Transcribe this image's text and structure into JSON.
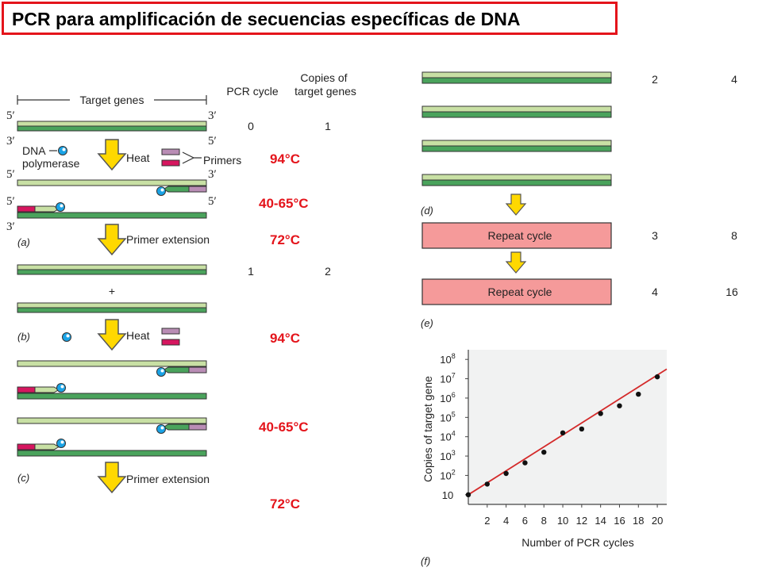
{
  "title": "PCR para amplificación de secuencias específicas de DNA",
  "colors": {
    "title_border": "#e4141b",
    "temp_text": "#e4141b",
    "strand_dark": "#4aa35c",
    "strand_light": "#c8e0a4",
    "primer_pink": "#d6165f",
    "primer_purple": "#b98db5",
    "arrow_yellow": "#ffd800",
    "repeat_box": "#f59a9a",
    "polymerase": "#1aa3e6"
  },
  "header": {
    "target_genes": "Target genes",
    "pcr_cycle": "PCR cycle",
    "copies_line1": "Copies of",
    "copies_line2": "target genes"
  },
  "ends": {
    "five": "5′",
    "three": "3′"
  },
  "labels": {
    "dna": "DNA",
    "polymerase": "polymerase",
    "heat": "Heat",
    "primers": "Primers",
    "primer_extension": "Primer extension",
    "plus": "+",
    "repeat_cycle": "Repeat cycle"
  },
  "panels": {
    "a": "(a)",
    "b": "(b)",
    "c": "(c)",
    "d": "(d)",
    "e": "(e)",
    "f": "(f)"
  },
  "temps": {
    "denature_1": "94°C",
    "anneal_1": "40-65°C",
    "extend_1": "72°C",
    "denature_2": "94°C",
    "anneal_2": "40-65°C",
    "extend_2": "72°C"
  },
  "cycle_table": [
    {
      "cycle": "0",
      "copies": "1"
    },
    {
      "cycle": "1",
      "copies": "2"
    },
    {
      "cycle": "2",
      "copies": "4"
    },
    {
      "cycle": "3",
      "copies": "8"
    },
    {
      "cycle": "4",
      "copies": "16"
    }
  ],
  "chart_data": {
    "type": "scatter",
    "xlabel": "Number of PCR cycles",
    "ylabel": "Copies of  target gene",
    "x_ticks": [
      "2",
      "4",
      "6",
      "8",
      "10",
      "12",
      "14",
      "16",
      "18",
      "20"
    ],
    "y_ticks": [
      {
        "base": "10",
        "exp": ""
      },
      {
        "base": "10",
        "exp": "2"
      },
      {
        "base": "10",
        "exp": "3"
      },
      {
        "base": "10",
        "exp": "4"
      },
      {
        "base": "10",
        "exp": "5"
      },
      {
        "base": "10",
        "exp": "6"
      },
      {
        "base": "10",
        "exp": "7"
      },
      {
        "base": "10",
        "exp": "8"
      }
    ],
    "xlim": [
      0,
      21
    ],
    "ylim": [
      0.5,
      8.5
    ],
    "log_scale_y": true,
    "points": [
      {
        "x": 0,
        "y": 1
      },
      {
        "x": 2,
        "y": 1.55
      },
      {
        "x": 4,
        "y": 2.1
      },
      {
        "x": 6,
        "y": 2.65
      },
      {
        "x": 8,
        "y": 3.2
      },
      {
        "x": 10,
        "y": 4.2
      },
      {
        "x": 12,
        "y": 4.4
      },
      {
        "x": 14,
        "y": 5.2
      },
      {
        "x": 16,
        "y": 5.6
      },
      {
        "x": 18,
        "y": 6.2
      },
      {
        "x": 20,
        "y": 7.1
      }
    ],
    "fit_line": {
      "x": [
        0,
        21
      ],
      "y": [
        1.0,
        7.5
      ]
    }
  }
}
